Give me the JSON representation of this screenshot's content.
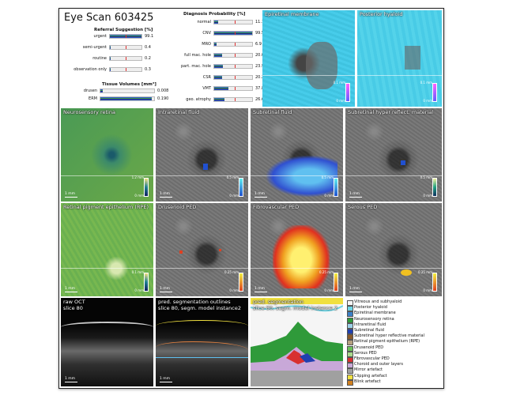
{
  "report": {
    "title": "Eye Scan 603425",
    "referral": {
      "heading": "Referral Suggestion [%]",
      "items": [
        {
          "label": "urgent",
          "value": "99.1",
          "frac": 0.991
        },
        {
          "label": "semi-urgent",
          "value": "0.4",
          "frac": 0.004
        },
        {
          "label": "routine",
          "value": "0.2",
          "frac": 0.002
        },
        {
          "label": "observation only",
          "value": "0.3",
          "frac": 0.003
        }
      ]
    },
    "volumes": {
      "heading": "Tissue Volumes [mm³]",
      "items": [
        {
          "label": "drusen",
          "value": "0.008",
          "frac": 0.05
        },
        {
          "label": "ERM",
          "value": "0.190",
          "frac": 0.95
        }
      ]
    },
    "diagnosis": {
      "heading": "Diagnosis Probability [%]",
      "items": [
        {
          "label": "normal",
          "value": "11.1",
          "frac": 0.111
        },
        {
          "label": "CNV",
          "value": "99.5",
          "frac": 0.995
        },
        {
          "label": "MRO",
          "value": "6.9",
          "frac": 0.069
        },
        {
          "label": "full mac. hole",
          "value": "20.0",
          "frac": 0.2
        },
        {
          "label": "part. mac. hole",
          "value": "23.9",
          "frac": 0.239
        },
        {
          "label": "CSR",
          "value": "20.2",
          "frac": 0.202
        },
        {
          "label": "VMT",
          "value": "37.8",
          "frac": 0.378
        },
        {
          "label": "geo. atrophy",
          "value": "26.6",
          "frac": 0.266
        }
      ]
    }
  },
  "panels": {
    "epiretinal": {
      "title": "Epiretinal membrane",
      "cmax": "0.1 mm",
      "cmin": "0 mm"
    },
    "posterior": {
      "title": "Posterior hyaloid",
      "cmax": "0.1 mm",
      "cmin": "0 mm"
    },
    "neuro": {
      "title": "Neurosensory retina",
      "cmax": "1.2 mm",
      "cmin": "0 mm",
      "scale": "1 mm"
    },
    "intraretinal": {
      "title": "Intraretinal fluid",
      "cmax": "0.5 mm",
      "cmin": "0 mm",
      "scale": "1 mm"
    },
    "subretinal": {
      "title": "Subretinal fluid",
      "cmax": "0.5 mm",
      "cmin": "0 mm",
      "scale": "1 mm"
    },
    "hyper": {
      "title": "Subretinal hyper reflect. material",
      "cmax": "0.5 mm",
      "cmin": "0 mm",
      "scale": "1 mm"
    },
    "rpe": {
      "title": "Retinal pigment epithelium (RPE)",
      "cmax": "0.1 mm",
      "cmin": "0 mm",
      "scale": "1 mm"
    },
    "drusenoid": {
      "title": "Drusenoid PED",
      "cmax": "0.25 mm",
      "cmin": "0 mm",
      "scale": "1 mm"
    },
    "fibro": {
      "title": "Fibrovascular PED",
      "cmax": "0.25 mm",
      "cmin": "0 mm",
      "scale": "1 mm"
    },
    "serous": {
      "title": "Serous PED",
      "cmax": "0.25 mm",
      "cmin": "0 mm",
      "scale": "1 mm"
    },
    "rawoct": {
      "title": "raw OCT",
      "sub": "slice 80",
      "scale": "1 mm"
    },
    "outlines": {
      "title": "pred. segmentation outlines",
      "sub": "slice 80, segm. model instance2",
      "scale": "1 mm"
    },
    "segm": {
      "title": "pred. segmentation",
      "sub": "slice 80, segm. model instance 2"
    }
  },
  "legend": [
    {
      "label": "Vitreous and subhyaloid",
      "color": "#f5f5f5"
    },
    {
      "label": "Posterior hyaloid",
      "color": "#6fd6e6"
    },
    {
      "label": "Epiretinal membrane",
      "color": "#3a7fc6"
    },
    {
      "label": "Neurosensory retina",
      "color": "#2f9a3a"
    },
    {
      "label": "Intraretinal fluid",
      "color": "#9cd0e8"
    },
    {
      "label": "Subretinal fluid",
      "color": "#2040b0"
    },
    {
      "label": "Subretinal hyper reflective material",
      "color": "#8a5a2a"
    },
    {
      "label": "Retinal pigment epithelium (RPE)",
      "color": "#b5a080"
    },
    {
      "label": "Drusenoid PED",
      "color": "#6bbf5a"
    },
    {
      "label": "Serous PED",
      "color": "#a8d88a"
    },
    {
      "label": "Fibrovascular PED",
      "color": "#d83030"
    },
    {
      "label": "Choroid and outer layers",
      "color": "#c8a8d8"
    },
    {
      "label": "Mirror artefact",
      "color": "#a0a0a0"
    },
    {
      "label": "Clipping artefact",
      "color": "#f0e040"
    },
    {
      "label": "Blink artefact",
      "color": "#d08020"
    }
  ]
}
